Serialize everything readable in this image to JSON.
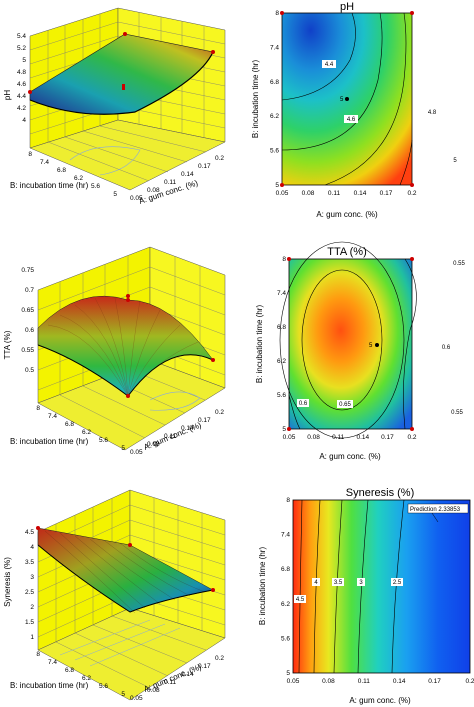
{
  "chart_data": [
    {
      "type": "surface",
      "zlabel": "pH",
      "xlabel": "A: gum conc. (%)",
      "ylabel": "B: incubation time (hr)",
      "z_ticks": [
        "4",
        "4.2",
        "4.4",
        "4.6",
        "4.8",
        "5",
        "5.2",
        "5.4"
      ],
      "x_ticks": [
        "0.05",
        "0.08",
        "0.11",
        "0.14",
        "0.17",
        "0.2"
      ],
      "y_ticks": [
        "5",
        "5.6",
        "6.2",
        "6.8",
        "7.4",
        "8"
      ],
      "colors": [
        "#1e2a8a",
        "#18a0b8",
        "#2fb64a",
        "#c9d21e",
        "#c62a1a"
      ]
    },
    {
      "type": "contour",
      "title": "pH",
      "xlabel": "A: gum conc. (%)",
      "ylabel": "B: incubation time (hr)",
      "x_ticks": [
        "0.05",
        "0.08",
        "0.11",
        "0.14",
        "0.17",
        "0.2"
      ],
      "y_ticks": [
        "5",
        "5.6",
        "6.2",
        "6.8",
        "7.4",
        "8"
      ],
      "contour_labels": [
        "4.4",
        "4.6",
        "4.8",
        "5"
      ],
      "center_label": "5",
      "xlim": [
        0.05,
        0.2
      ],
      "ylim": [
        5,
        8
      ]
    },
    {
      "type": "surface",
      "zlabel": "TTA (%)",
      "xlabel": "A: gum conc. (%)",
      "ylabel": "B: incubation time (hr)",
      "z_ticks": [
        "0.5",
        "0.55",
        "0.6",
        "0.65",
        "0.7",
        "0.75"
      ],
      "x_ticks": [
        "0.05",
        "0.08",
        "0.11",
        "0.14",
        "0.17",
        "0.2"
      ],
      "y_ticks": [
        "5",
        "5.6",
        "6.2",
        "6.8",
        "7.4",
        "8"
      ],
      "colors": [
        "#1e2a8a",
        "#18a0b8",
        "#2fb64a",
        "#c9d21e",
        "#c62a1a"
      ]
    },
    {
      "type": "contour",
      "title": "TTA (%)",
      "xlabel": "A: gum conc. (%)",
      "ylabel": "B: incubation time (hr)",
      "x_ticks": [
        "0.05",
        "0.08",
        "0.11",
        "0.14",
        "0.17",
        "0.2"
      ],
      "y_ticks": [
        "5",
        "5.6",
        "6.2",
        "6.8",
        "7.4",
        "8"
      ],
      "contour_labels": [
        "0.6",
        "0.65",
        "0.6",
        "0.55",
        "0.55"
      ],
      "center_label": "5",
      "xlim": [
        0.05,
        0.2
      ],
      "ylim": [
        5,
        8
      ]
    },
    {
      "type": "surface",
      "zlabel": "Syneresis (%)",
      "xlabel": "A: gum conc. (%)",
      "ylabel": "B: incubation time (hr)",
      "z_ticks": [
        "1",
        "1.5",
        "2",
        "2.5",
        "3",
        "3.5",
        "4",
        "4.5"
      ],
      "x_ticks": [
        "0.05",
        "0.08",
        "0.11",
        "0.14",
        "0.17",
        "0.2"
      ],
      "y_ticks": [
        "5",
        "5.6",
        "6.2",
        "6.8",
        "7.4",
        "8"
      ],
      "colors": [
        "#1e2a8a",
        "#18a0b8",
        "#2fb64a",
        "#c9d21e",
        "#c62a1a"
      ]
    },
    {
      "type": "contour",
      "title": "Syneresis (%)",
      "xlabel": "A: gum conc. (%)",
      "ylabel": "B: incubation time (hr)",
      "x_ticks": [
        "0.05",
        "0.08",
        "0.11",
        "0.14",
        "0.17",
        "0.2"
      ],
      "y_ticks": [
        "5",
        "5.6",
        "6.2",
        "6.8",
        "7.4",
        "8"
      ],
      "contour_labels": [
        "4.5",
        "4",
        "3.5",
        "3",
        "2.5"
      ],
      "prediction_label": "Prediction 2.33853",
      "xlim": [
        0.05,
        0.2
      ],
      "ylim": [
        5,
        8
      ]
    }
  ]
}
